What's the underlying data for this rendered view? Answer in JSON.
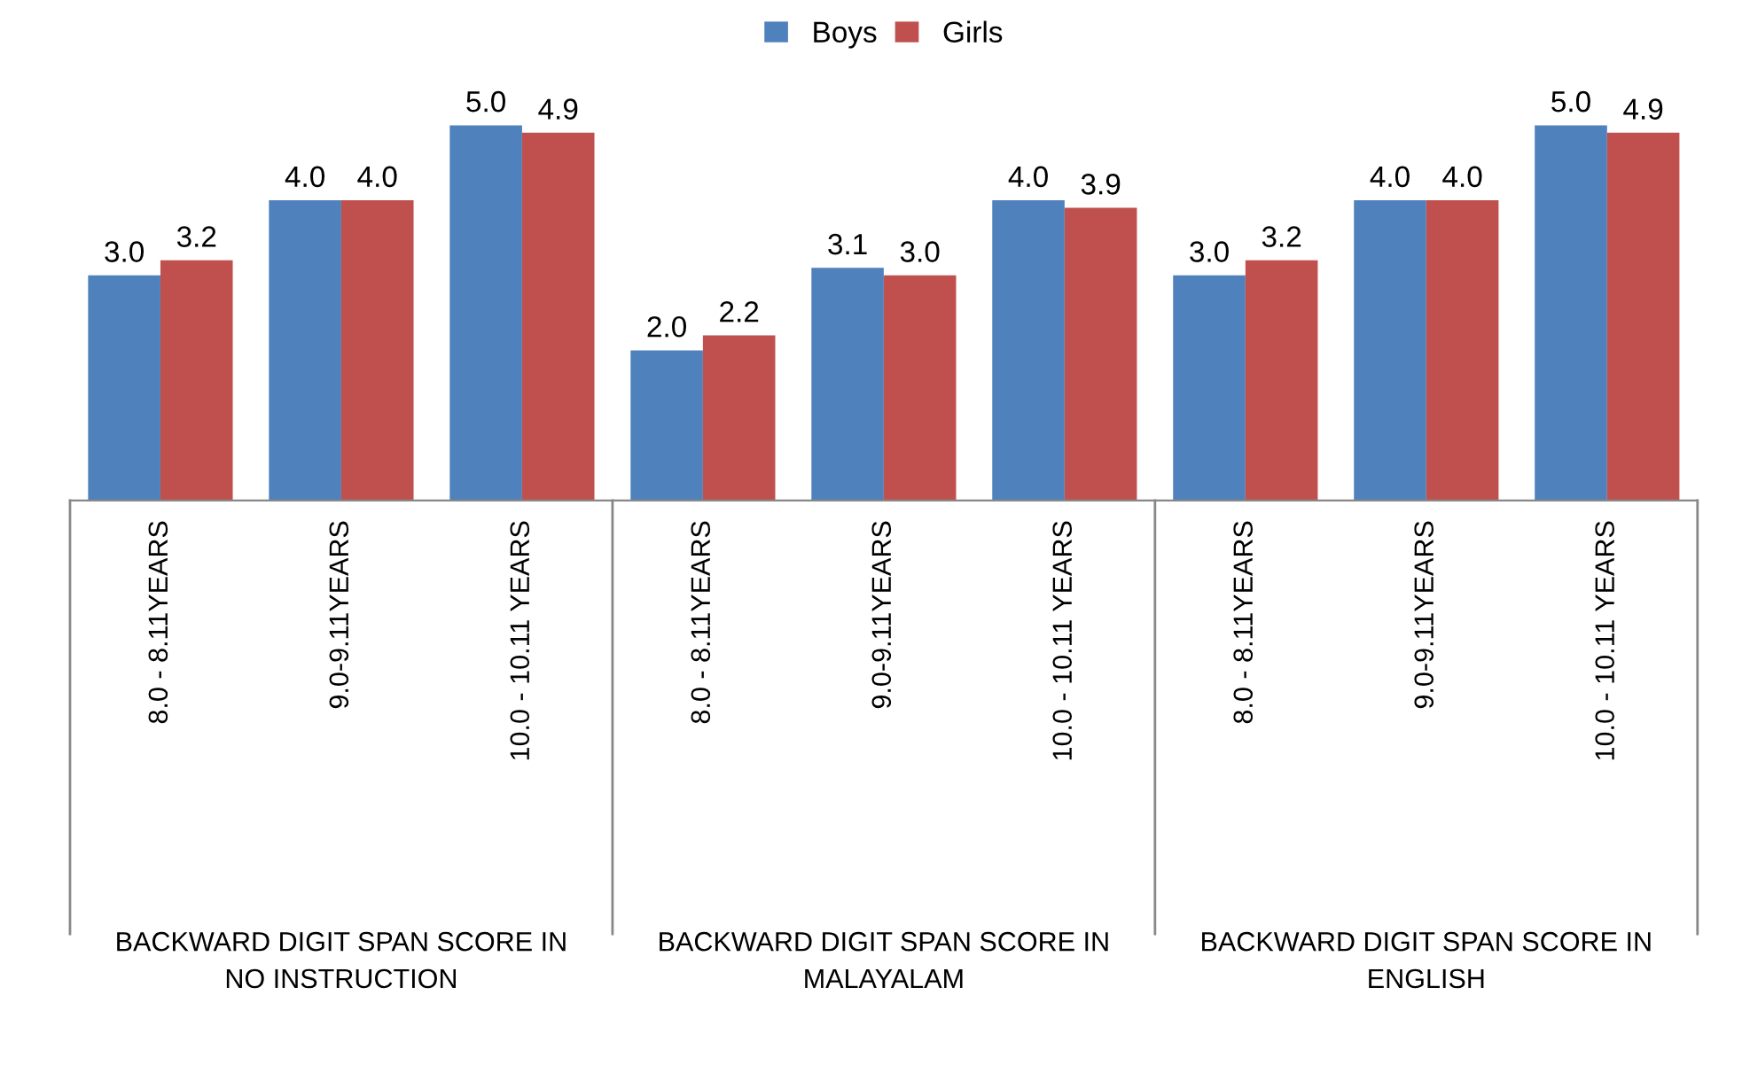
{
  "chart_data": {
    "type": "bar",
    "categories": [
      "8.0 - 8.11YEARS",
      "9.0-9.11YEARS",
      "10.0 - 10.11 YEARS",
      "8.0 - 8.11YEARS",
      "9.0-9.11YEARS",
      "10.0 - 10.11 YEARS",
      "8.0 - 8.11YEARS",
      "9.0-9.11YEARS",
      "10.0 - 10.11 YEARS"
    ],
    "series": [
      {
        "name": "Boys",
        "color": "#4f81bd",
        "values": [
          3.0,
          4.0,
          5.0,
          2.0,
          3.1,
          4.0,
          3.0,
          4.0,
          5.0
        ],
        "value_labels": [
          "3.0",
          "4.0",
          "5.0",
          "2.0",
          "3.1",
          "4.0",
          "3.0",
          "4.0",
          "5.0"
        ]
      },
      {
        "name": "Girls",
        "color": "#c0504d",
        "values": [
          3.2,
          4.0,
          4.9,
          2.2,
          3.0,
          3.9,
          3.2,
          4.0,
          4.9
        ],
        "value_labels": [
          "3.2",
          "4.0",
          "4.9",
          "2.2",
          "3.0",
          "3.9",
          "3.2",
          "4.0",
          "4.9"
        ]
      }
    ],
    "annotations": [
      "BACKWARD DIGIT SPAN SCORE IN NO INSTRUCTION",
      "BACKWARD DIGIT SPAN SCORE IN MALAYALAM",
      "BACKWARD DIGIT SPAN SCORE IN ENGLISH"
    ],
    "legend": "top",
    "grid": false
  }
}
